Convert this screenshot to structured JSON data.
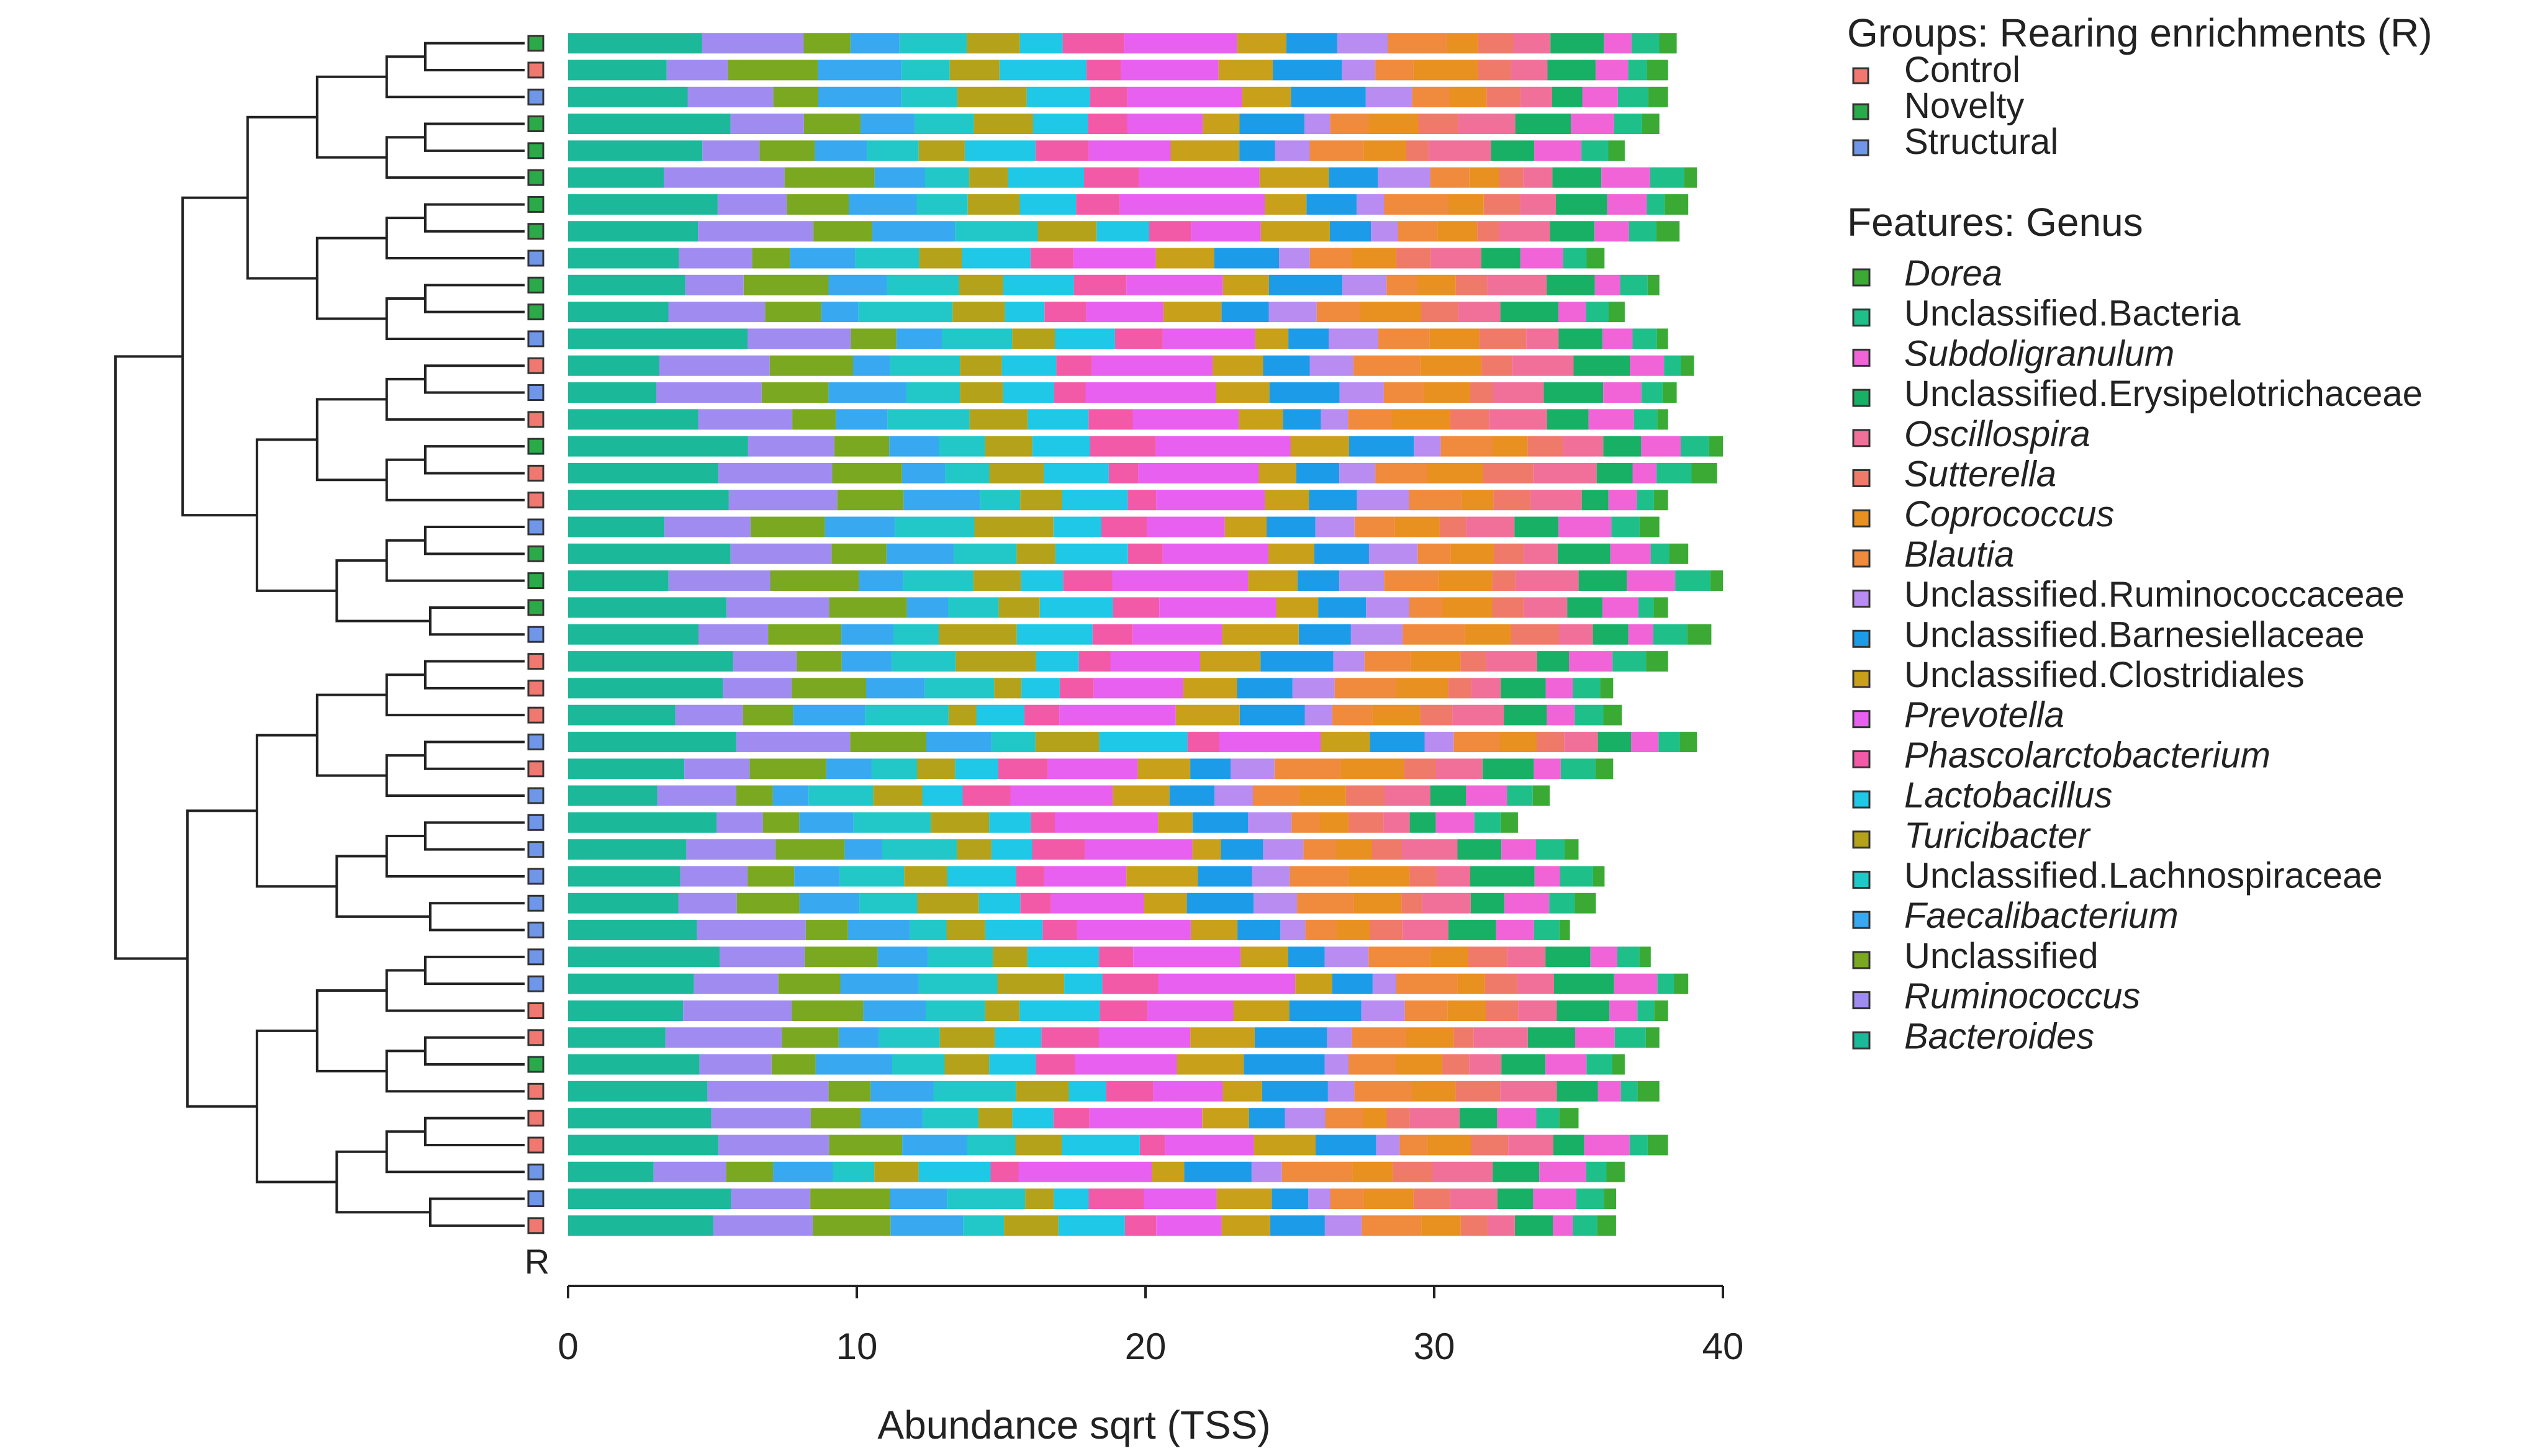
{
  "chart_data": {
    "type": "bar",
    "orientation": "horizontal",
    "stacked": true,
    "xlabel": "Abundance sqrt (TSS)",
    "xlim": [
      0,
      40
    ],
    "xticks": [
      0,
      10,
      20,
      30,
      40
    ],
    "group_track_label": "R",
    "legend_groups_title": "Groups: Rearing enrichments (R)",
    "legend_features_title": "Features: Genus",
    "groups": [
      {
        "name": "Control",
        "color": "#f07870"
      },
      {
        "name": "Novelty",
        "color": "#2aaa48"
      },
      {
        "name": "Structural",
        "color": "#6f96e8"
      }
    ],
    "features": [
      {
        "name": "Dorea",
        "italic": true,
        "color": "#3aaa35"
      },
      {
        "name": "Unclassified.Bacteria",
        "italic": false,
        "color": "#1fbf8a"
      },
      {
        "name": "Subdoligranulum",
        "italic": true,
        "color": "#f064d8"
      },
      {
        "name": "Unclassified.Erysipelotrichaceae",
        "italic": false,
        "color": "#18b065"
      },
      {
        "name": "Oscillospira",
        "italic": true,
        "color": "#f0709a"
      },
      {
        "name": "Sutterella",
        "italic": true,
        "color": "#f07a6a"
      },
      {
        "name": "Coprococcus",
        "italic": true,
        "color": "#e89020"
      },
      {
        "name": "Blautia",
        "italic": true,
        "color": "#f08a3c"
      },
      {
        "name": "Unclassified.Ruminococcaceae",
        "italic": false,
        "color": "#b88cf0"
      },
      {
        "name": "Unclassified.Barnesiellaceae",
        "italic": false,
        "color": "#1c9ce8"
      },
      {
        "name": "Unclassified.Clostridiales",
        "italic": false,
        "color": "#c8a01a"
      },
      {
        "name": "Prevotella",
        "italic": true,
        "color": "#e860f0"
      },
      {
        "name": "Phascolarctobacterium",
        "italic": true,
        "color": "#f25aa8"
      },
      {
        "name": "Lactobacillus",
        "italic": true,
        "color": "#1ec8e6"
      },
      {
        "name": "Turicibacter",
        "italic": true,
        "color": "#b4a21a"
      },
      {
        "name": "Unclassified.Lachnospiraceae",
        "italic": false,
        "color": "#22c8c8"
      },
      {
        "name": "Faecalibacterium",
        "italic": true,
        "color": "#38a8f0"
      },
      {
        "name": "Unclassified",
        "italic": false,
        "color": "#7aa820"
      },
      {
        "name": "Ruminococcus",
        "italic": true,
        "color": "#a08cf0"
      },
      {
        "name": "Bacteroides",
        "italic": true,
        "color": "#1cb89a"
      }
    ],
    "stack_order_left_to_right": [
      "Bacteroides",
      "Ruminococcus",
      "Unclassified",
      "Faecalibacterium",
      "Unclassified.Lachnospiraceae",
      "Turicibacter",
      "Lactobacillus",
      "Phascolarctobacterium",
      "Prevotella",
      "Unclassified.Clostridiales",
      "Unclassified.Barnesiellaceae",
      "Unclassified.Ruminococcaceae",
      "Blautia",
      "Coprococcus",
      "Sutterella",
      "Oscillospira",
      "Unclassified.Erysipelotrichaceae",
      "Subdoligranulum",
      "Unclassified.Bacteria",
      "Dorea"
    ],
    "samples": [
      {
        "group": "Novelty",
        "total": 38.4
      },
      {
        "group": "Control",
        "total": 38.1
      },
      {
        "group": "Structural",
        "total": 38.1
      },
      {
        "group": "Novelty",
        "total": 37.8
      },
      {
        "group": "Novelty",
        "total": 36.6
      },
      {
        "group": "Novelty",
        "total": 39.1
      },
      {
        "group": "Novelty",
        "total": 38.8
      },
      {
        "group": "Novelty",
        "total": 38.5
      },
      {
        "group": "Structural",
        "total": 35.9
      },
      {
        "group": "Novelty",
        "total": 37.8
      },
      {
        "group": "Novelty",
        "total": 36.6
      },
      {
        "group": "Structural",
        "total": 38.1
      },
      {
        "group": "Control",
        "total": 39.0
      },
      {
        "group": "Structural",
        "total": 38.4
      },
      {
        "group": "Control",
        "total": 38.1
      },
      {
        "group": "Novelty",
        "total": 40.0
      },
      {
        "group": "Control",
        "total": 39.8
      },
      {
        "group": "Control",
        "total": 38.1
      },
      {
        "group": "Structural",
        "total": 37.8
      },
      {
        "group": "Novelty",
        "total": 38.8
      },
      {
        "group": "Novelty",
        "total": 40.0
      },
      {
        "group": "Novelty",
        "total": 38.1
      },
      {
        "group": "Structural",
        "total": 39.6
      },
      {
        "group": "Control",
        "total": 38.1
      },
      {
        "group": "Control",
        "total": 36.2
      },
      {
        "group": "Control",
        "total": 36.5
      },
      {
        "group": "Structural",
        "total": 39.1
      },
      {
        "group": "Control",
        "total": 36.2
      },
      {
        "group": "Structural",
        "total": 34.0
      },
      {
        "group": "Structural",
        "total": 32.9
      },
      {
        "group": "Structural",
        "total": 35.0
      },
      {
        "group": "Structural",
        "total": 35.9
      },
      {
        "group": "Structural",
        "total": 35.6
      },
      {
        "group": "Structural",
        "total": 34.7
      },
      {
        "group": "Structural",
        "total": 37.5
      },
      {
        "group": "Structural",
        "total": 38.8
      },
      {
        "group": "Control",
        "total": 38.1
      },
      {
        "group": "Control",
        "total": 37.8
      },
      {
        "group": "Novelty",
        "total": 36.6
      },
      {
        "group": "Control",
        "total": 37.8
      },
      {
        "group": "Control",
        "total": 35.0
      },
      {
        "group": "Control",
        "total": 38.1
      },
      {
        "group": "Structural",
        "total": 36.6
      },
      {
        "group": "Structural",
        "total": 36.3
      },
      {
        "group": "Control",
        "total": 36.3
      }
    ]
  }
}
